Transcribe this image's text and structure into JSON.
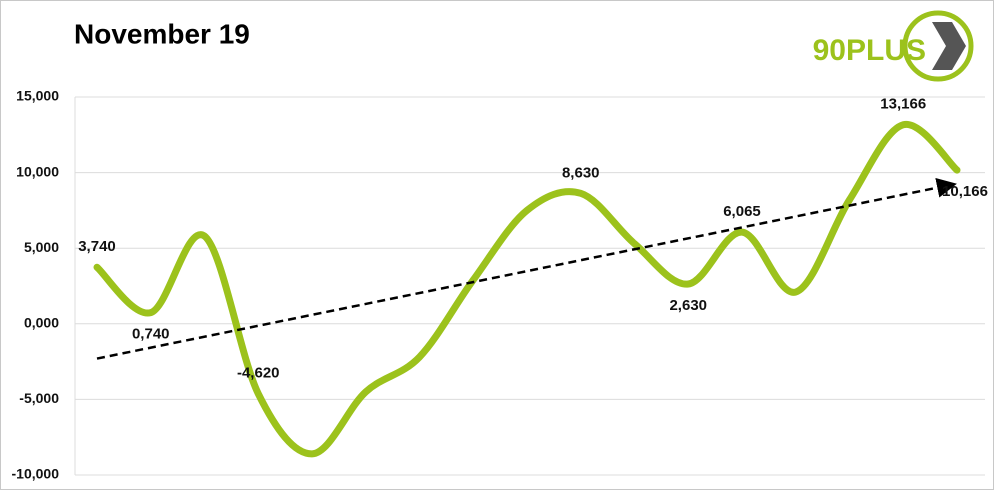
{
  "chart_data": {
    "type": "line",
    "title": "November 19",
    "logo": "90PLUS",
    "values": [
      3.74,
      0.74,
      5.8,
      -4.62,
      -8.6,
      -4.5,
      -2.2,
      2.9,
      7.5,
      8.63,
      5.3,
      2.63,
      6.065,
      2.1,
      8.2,
      13.166,
      10.166
    ],
    "value_labels": [
      "3,740",
      "0,740",
      null,
      "-4,620",
      null,
      null,
      null,
      null,
      null,
      "8,630",
      null,
      "2,630",
      "6,065",
      null,
      null,
      "13,166",
      "10,166"
    ],
    "color": "#9cc21c",
    "trendline": [
      -2.3,
      9.2
    ],
    "ylim": [
      -10,
      15
    ],
    "yticks": [
      {
        "value": -10,
        "label": "-10,000"
      },
      {
        "value": -5,
        "label": "-5,000"
      },
      {
        "value": 0,
        "label": "0,000"
      },
      {
        "value": 5,
        "label": "5,000"
      },
      {
        "value": 10,
        "label": "10,000"
      },
      {
        "value": 15,
        "label": "15,000"
      }
    ],
    "grid": true
  }
}
